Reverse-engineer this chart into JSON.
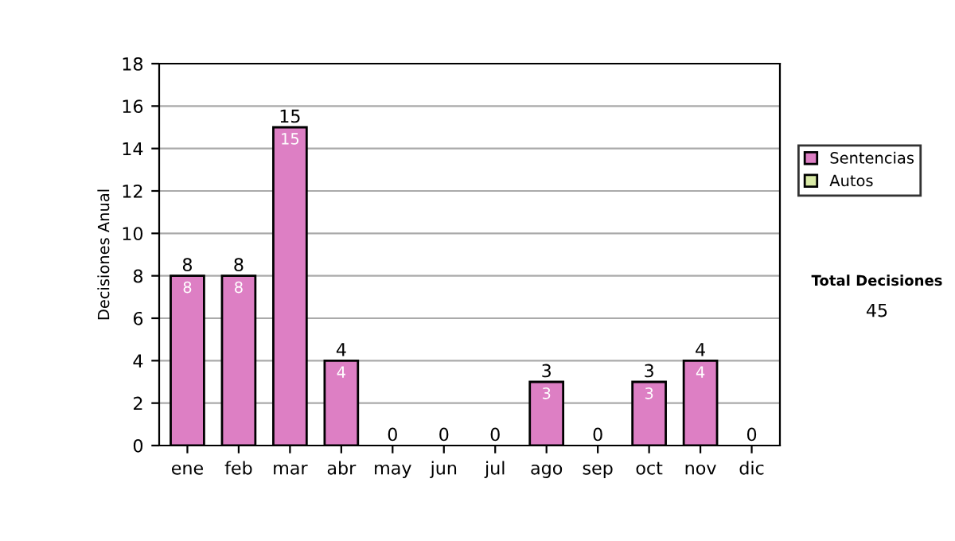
{
  "chart_data": {
    "type": "bar",
    "stacked": true,
    "ylabel": "Decisiones Anual",
    "categories": [
      "ene",
      "feb",
      "mar",
      "abr",
      "may",
      "jun",
      "jul",
      "ago",
      "sep",
      "oct",
      "nov",
      "dic"
    ],
    "series": [
      {
        "name": "Sentencias",
        "color": "#dd7fc4",
        "values": [
          8,
          8,
          15,
          4,
          0,
          0,
          0,
          3,
          0,
          3,
          4,
          0
        ],
        "value_labels": [
          "8",
          "8",
          "15",
          "4",
          null,
          null,
          null,
          "3",
          null,
          "3",
          "4",
          null
        ]
      },
      {
        "name": "Autos",
        "color": "#d9eaa6",
        "values": [
          0,
          0,
          0,
          0,
          0,
          0,
          0,
          0,
          0,
          0,
          0,
          0
        ]
      }
    ],
    "totals": [
      "8",
      "8",
      "15",
      "4",
      "0",
      "0",
      "0",
      "3",
      "0",
      "3",
      "4",
      "0"
    ],
    "ylim": [
      0,
      18
    ],
    "yticks": [
      0,
      2,
      4,
      6,
      8,
      10,
      12,
      14,
      16,
      18
    ],
    "grid": "y",
    "legend": "right",
    "annotations": [
      "Total Decisiones",
      "45"
    ]
  }
}
